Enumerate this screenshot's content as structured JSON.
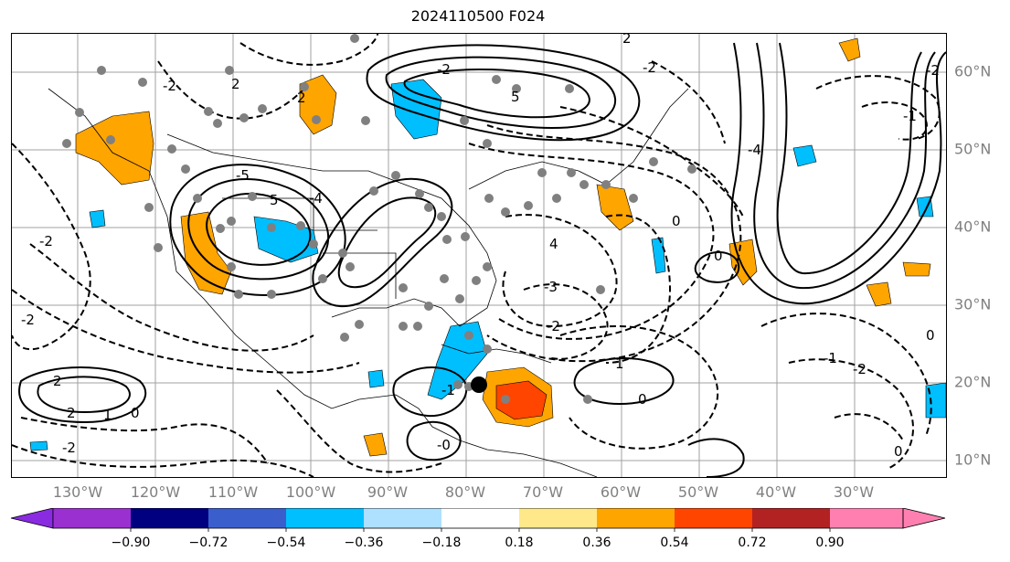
{
  "title": "2024110500 F024",
  "lon_labels": [
    "130°W",
    "120°W",
    "110°W",
    "100°W",
    "90°W",
    "80°W",
    "70°W",
    "60°W",
    "50°W",
    "40°W",
    "30°W"
  ],
  "lat_labels": [
    "60°N",
    "50°N",
    "40°N",
    "30°N",
    "20°N",
    "10°N"
  ],
  "contour_labels": [
    "-2",
    "-2",
    "-2",
    "2",
    "5",
    "-4",
    "-5",
    "2",
    "-2",
    "5",
    "2",
    "4",
    "-3",
    "-2",
    "-2",
    "-4",
    "-2",
    "-1",
    "-1",
    "1",
    "0",
    "-2",
    "2",
    "-2",
    "2",
    "1",
    "0",
    "-0",
    "0",
    "0",
    "-1",
    "0",
    "0"
  ],
  "colorbar": {
    "ticks": [
      "−0.90",
      "−0.72",
      "−0.54",
      "−0.36",
      "−0.18",
      "0.18",
      "0.36",
      "0.54",
      "0.72",
      "0.90"
    ],
    "colors": [
      "#8a2be2",
      "#9b30d0",
      "#000080",
      "#3a5fcd",
      "#00bfff",
      "#aee0ff",
      "#ffffff",
      "#ffe88a",
      "#ffa500",
      "#ff4500",
      "#b22222",
      "#ff80b0"
    ]
  }
}
